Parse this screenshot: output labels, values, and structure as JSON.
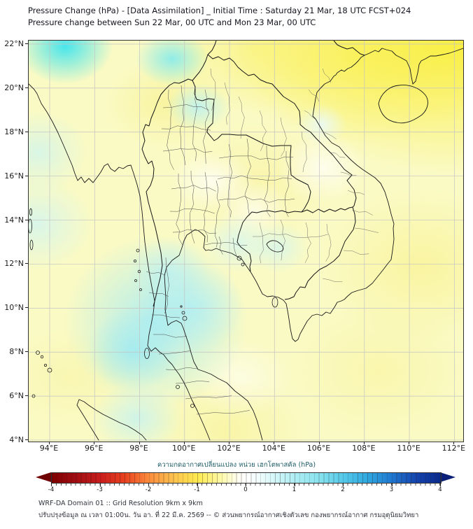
{
  "header": {
    "title_line1": "Pressure Change (hPa) - [Data Assimilation] _ Initial Time : Saturday 21 Mar, 18 UTC FCST+024",
    "title_line2": "Pressure change between Sun 22 Mar, 00 UTC and Mon 23 Mar, 00 UTC"
  },
  "map": {
    "x_tick_labels": [
      "94°E",
      "96°E",
      "98°E",
      "100°E",
      "102°E",
      "104°E",
      "106°E",
      "108°E",
      "110°E",
      "112°E"
    ],
    "y_tick_labels": [
      "22°N",
      "20°N",
      "18°N",
      "16°N",
      "14°N",
      "12°N",
      "10°N",
      "8°N",
      "6°N",
      "4°N"
    ]
  },
  "colorbar": {
    "label": "ความกดอากาศเปลี่ยนแปลง หน่วย เฮกโตพาสคัล (hPa)",
    "tick_labels": [
      "-4",
      "-3",
      "-2",
      "-1",
      "0",
      "1",
      "2",
      "3",
      "4"
    ]
  },
  "footer": {
    "line1": "WRF-DA Domain 01 :: Grid Resolution 9km x 9km",
    "line2": "ปรับปรุงข้อมูล ณ เวลา 01:00น. วัน อา. ที่ 22 มี.ค. 2569 -- © ส่วนพยากรณ์อากาศเชิงตัวเลข กองพยากรณ์อากาศ กรมอุตุนิยมวิทยา"
  },
  "chart_data": {
    "type": "heatmap",
    "title": "Pressure Change (hPa) - [Data Assimilation] _ Initial Time : Saturday 21 Mar, 18 UTC FCST+024",
    "subtitle": "Pressure change between Sun 22 Mar, 00 UTC and Mon 23 Mar, 00 UTC",
    "x_axis": {
      "label_ticks": [
        "94°E",
        "96°E",
        "98°E",
        "100°E",
        "102°E",
        "104°E",
        "106°E",
        "108°E",
        "110°E",
        "112°E"
      ],
      "range_deg_east": [
        93.1,
        112.4
      ]
    },
    "y_axis": {
      "label_ticks": [
        "22°N",
        "20°N",
        "18°N",
        "16°N",
        "14°N",
        "12°N",
        "10°N",
        "8°N",
        "6°N",
        "4°N"
      ],
      "range_deg_north": [
        4.0,
        22.2
      ]
    },
    "grid": true,
    "legend_position": "bottom colorbar, double-arrow extended ends",
    "colorbar": {
      "label": "ความกดอากาศเปลี่ยนแปลง หน่วย เฮกโตพาสคัล (hPa)",
      "min": -4,
      "max": 4,
      "ticks": [
        -4,
        -3,
        -2,
        -1,
        0,
        1,
        2,
        3,
        4
      ],
      "cell_step_hpa": 0.1,
      "color_stops": [
        "#7f0000 (-4)",
        "#c81d1d (-3)",
        "#fb8c3c (-2)",
        "#fdea4f (-1)",
        "#ffffff (0)",
        "#aeeef4 (+1)",
        "#55c9ea (+2)",
        "#1f77d0 (+3)",
        "#0a2a8a (+4)"
      ]
    },
    "field_features": [
      {
        "area": "top-left corner near 93-95E, 21-22N",
        "pressure_change_hpa": 1.5
      },
      {
        "area": "north-central blob near 100.5E, 21.5N",
        "pressure_change_hpa": 0.8
      },
      {
        "area": "Andaman Sea and Thai peninsula 95-101E, 6-13N",
        "pressure_change_hpa": 0.8
      },
      {
        "area": "NE Thailand / Cambodia 102-105E, 12-15N",
        "pressure_change_hpa": 0.3
      },
      {
        "area": "top-right China coast 105-112E, 18-22N",
        "pressure_change_hpa": -1.2
      },
      {
        "area": "remaining domain (pale yellow background)",
        "pressure_change_hpa": -0.5
      }
    ],
    "basemap": "Southeast Asia coastlines with Thailand province boundaries, country borders, Hainan, Sumatra tip"
  }
}
